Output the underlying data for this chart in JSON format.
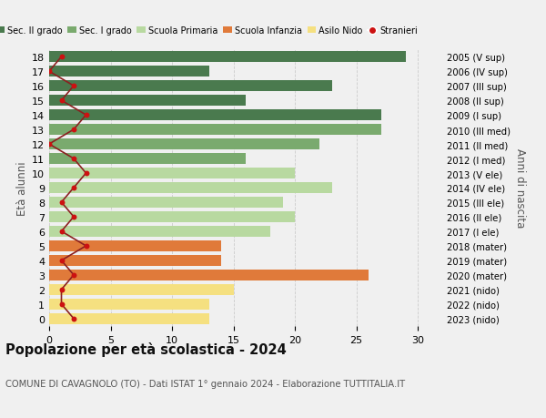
{
  "ages": [
    18,
    17,
    16,
    15,
    14,
    13,
    12,
    11,
    10,
    9,
    8,
    7,
    6,
    5,
    4,
    3,
    2,
    1,
    0
  ],
  "bar_values": [
    29,
    13,
    23,
    16,
    27,
    27,
    22,
    16,
    20,
    23,
    19,
    20,
    18,
    14,
    14,
    26,
    15,
    13,
    13
  ],
  "stranieri_values": [
    1,
    0,
    2,
    1,
    3,
    2,
    0,
    2,
    3,
    2,
    1,
    2,
    1,
    3,
    1,
    2,
    1,
    1,
    2
  ],
  "right_labels": [
    "2005 (V sup)",
    "2006 (IV sup)",
    "2007 (III sup)",
    "2008 (II sup)",
    "2009 (I sup)",
    "2010 (III med)",
    "2011 (II med)",
    "2012 (I med)",
    "2013 (V ele)",
    "2014 (IV ele)",
    "2015 (III ele)",
    "2016 (II ele)",
    "2017 (I ele)",
    "2018 (mater)",
    "2019 (mater)",
    "2020 (mater)",
    "2021 (nido)",
    "2022 (nido)",
    "2023 (nido)"
  ],
  "bar_colors": [
    "#4a7a4e",
    "#4a7a4e",
    "#4a7a4e",
    "#4a7a4e",
    "#4a7a4e",
    "#7aaa6e",
    "#7aaa6e",
    "#7aaa6e",
    "#b8d9a0",
    "#b8d9a0",
    "#b8d9a0",
    "#b8d9a0",
    "#b8d9a0",
    "#e07a3a",
    "#e07a3a",
    "#e07a3a",
    "#f5e080",
    "#f5e080",
    "#f5e080"
  ],
  "legend_labels": [
    "Sec. II grado",
    "Sec. I grado",
    "Scuola Primaria",
    "Scuola Infanzia",
    "Asilo Nido",
    "Stranieri"
  ],
  "legend_colors": [
    "#4a7a4e",
    "#7aaa6e",
    "#b8d9a0",
    "#e07a3a",
    "#f5e080",
    "#cc1111"
  ],
  "title": "Popolazione per età scolastica - 2024",
  "subtitle": "COMUNE DI CAVAGNOLO (TO) - Dati ISTAT 1° gennaio 2024 - Elaborazione TUTTITALIA.IT",
  "ylabel_left": "Età alunni",
  "ylabel_right": "Anni di nascita",
  "xlim": [
    0,
    32
  ],
  "background_color": "#f0f0f0",
  "stranieri_color": "#cc1111",
  "stranieri_line_color": "#8b2020"
}
